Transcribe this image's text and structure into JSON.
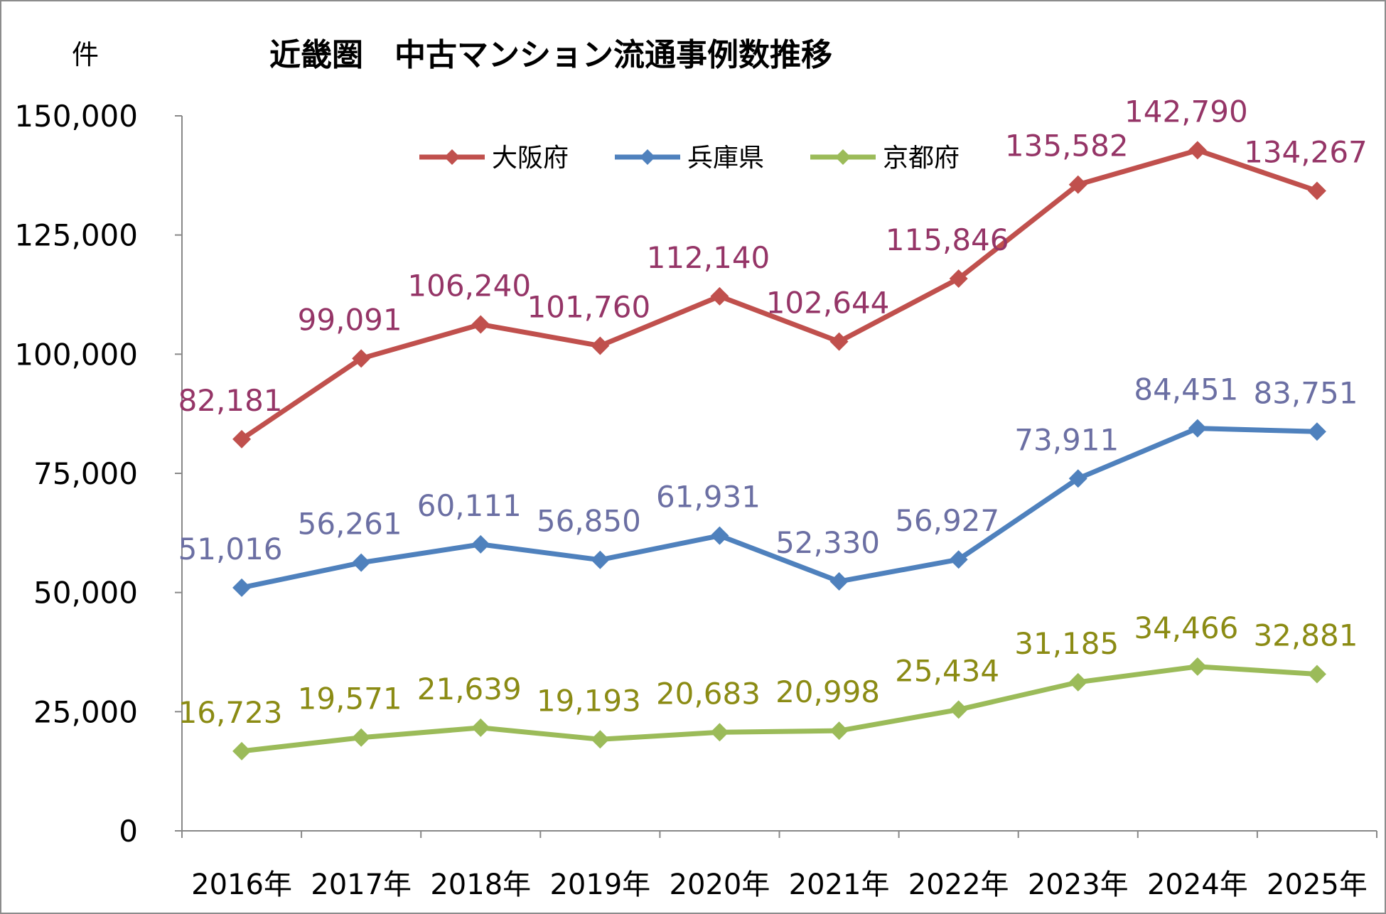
{
  "chart_data": {
    "type": "line",
    "title": "近畿圏　中古マンション流通事例数推移",
    "unit_label": "件",
    "categories": [
      "2016年",
      "2017年",
      "2018年",
      "2019年",
      "2020年",
      "2021年",
      "2022年",
      "2023年",
      "2024年",
      "2025年"
    ],
    "ylim": [
      0,
      150000
    ],
    "yticks": [
      "0",
      "25,000",
      "50,000",
      "75,000",
      "100,000",
      "125,000",
      "150,000"
    ],
    "legend_position": "top",
    "series": [
      {
        "name": "大阪府",
        "color": "#c0504d",
        "label_color": "#953567",
        "values": [
          82181,
          99091,
          106240,
          101760,
          112140,
          102644,
          115846,
          135582,
          142790,
          134267
        ],
        "labels": [
          "82,181",
          "99,091",
          "106,240",
          "101,760",
          "112,140",
          "102,644",
          "115,846",
          "135,582",
          "142,790",
          "134,267"
        ]
      },
      {
        "name": "兵庫県",
        "color": "#4f81bd",
        "label_color": "#6b6fa3",
        "values": [
          51016,
          56261,
          60111,
          56850,
          61931,
          52330,
          56927,
          73911,
          84451,
          83751
        ],
        "labels": [
          "51,016",
          "56,261",
          "60,111",
          "56,850",
          "61,931",
          "52,330",
          "56,927",
          "73,911",
          "84,451",
          "83,751"
        ]
      },
      {
        "name": "京都府",
        "color": "#9bbb59",
        "label_color": "#8b8b14",
        "values": [
          16723,
          19571,
          21639,
          19193,
          20683,
          20998,
          25434,
          31185,
          34466,
          32881
        ],
        "labels": [
          "16,723",
          "19,571",
          "21,639",
          "19,193",
          "20,683",
          "20,998",
          "25,434",
          "31,185",
          "34,466",
          "32,881"
        ]
      }
    ]
  }
}
